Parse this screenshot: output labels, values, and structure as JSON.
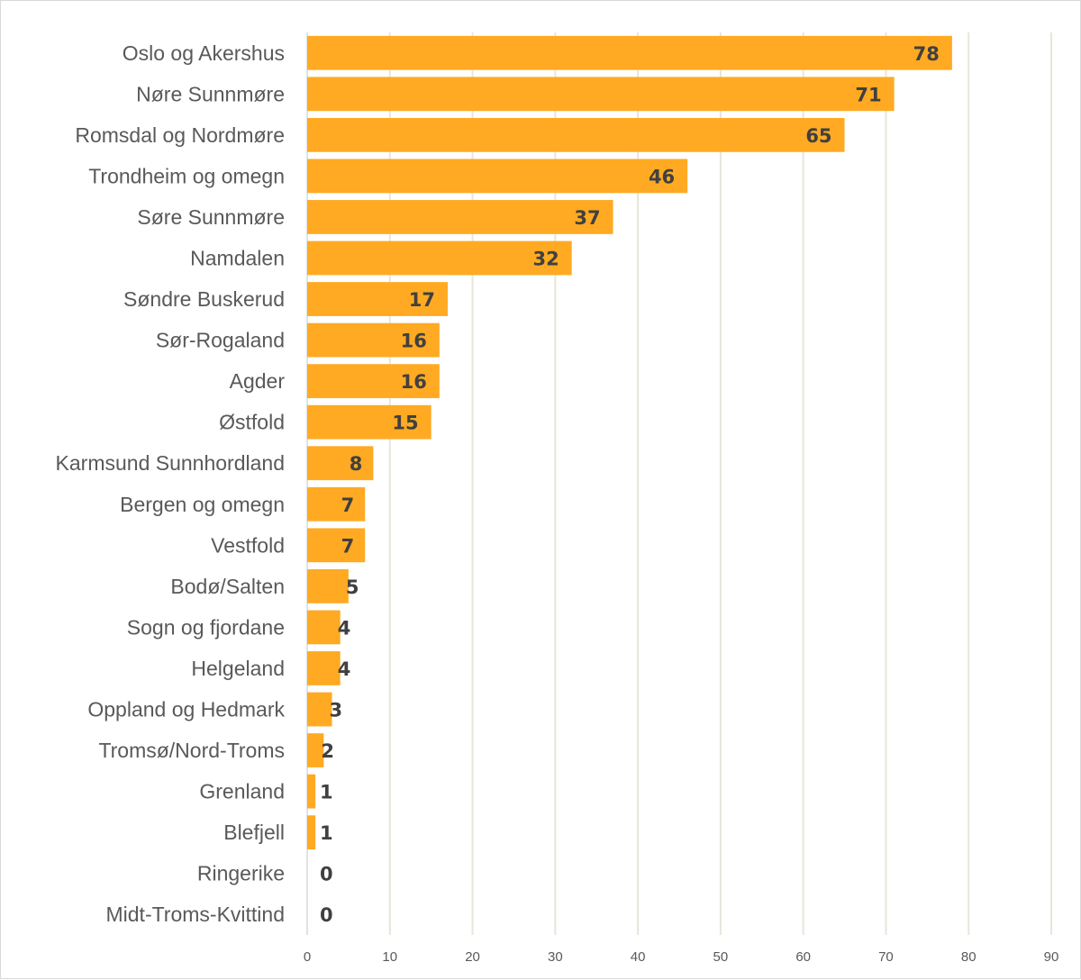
{
  "chart_data": {
    "type": "bar",
    "orientation": "horizontal",
    "categories": [
      "Oslo og Akershus",
      "Nøre Sunnmøre",
      "Romsdal og Nordmøre",
      "Trondheim og omegn",
      "Søre Sunnmøre",
      "Namdalen",
      "Søndre Buskerud",
      "Sør-Rogaland",
      "Agder",
      "Østfold",
      "Karmsund Sunnhordland",
      "Bergen og omegn",
      "Vestfold",
      "Bodø/Salten",
      "Sogn og fjordane",
      "Helgeland",
      "Oppland og Hedmark",
      "Tromsø/Nord-Troms",
      "Grenland",
      "Blefjell",
      "Ringerike",
      "Midt-Troms-Kvittind"
    ],
    "values": [
      78,
      71,
      65,
      46,
      37,
      32,
      17,
      16,
      16,
      15,
      8,
      7,
      7,
      5,
      4,
      4,
      3,
      2,
      1,
      1,
      0,
      0
    ],
    "xticks": [
      "0",
      "10",
      "20",
      "30",
      "40",
      "50",
      "60",
      "70",
      "80",
      "90"
    ],
    "xlim": [
      0,
      90
    ],
    "grid": true,
    "legend": "none",
    "data_labels": true,
    "colors": {
      "bar": "#FFAA22",
      "grid": "#E8E6D9",
      "label": "#595959",
      "value": "#404040"
    }
  }
}
